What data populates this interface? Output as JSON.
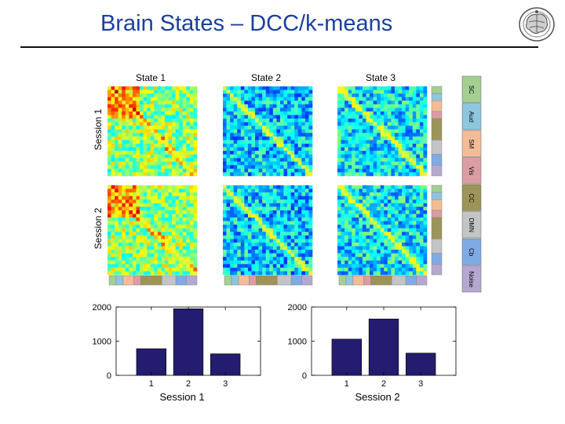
{
  "slide": {
    "title": "Brain States – DCC/k-means",
    "title_color": "#1a3f9e"
  },
  "logo": {
    "icon": "brain-globe-seal-icon"
  },
  "matrices": {
    "state_titles": [
      "State 1",
      "State 2",
      "State 3"
    ],
    "session_labels": [
      "Session 1",
      "Session 2"
    ],
    "size": 25,
    "colormap": "jet",
    "diagonal_color": "#f6f22a",
    "network_legend": [
      {
        "label": "SC",
        "color": "#a3cf93"
      },
      {
        "label": "Aud",
        "color": "#8ec6e0"
      },
      {
        "label": "SM",
        "color": "#f4bc96"
      },
      {
        "label": "Vis",
        "color": "#db9da2"
      },
      {
        "label": "CC",
        "color": "#9c9458"
      },
      {
        "label": "DMN",
        "color": "#c2c4c6"
      },
      {
        "label": "Cb",
        "color": "#7fabe5"
      },
      {
        "label": "Noise",
        "color": "#b4a8d0"
      }
    ]
  },
  "chart_data": [
    {
      "type": "bar",
      "title": "",
      "xlabel": "Session 1",
      "ylabel": "",
      "categories": [
        "1",
        "2",
        "3"
      ],
      "values": [
        780,
        1950,
        630
      ],
      "ylim": [
        0,
        2000
      ],
      "yticks": [
        0,
        1000,
        2000
      ],
      "bar_color": "#241c6e"
    },
    {
      "type": "bar",
      "title": "",
      "xlabel": "Session 2",
      "ylabel": "",
      "categories": [
        "1",
        "2",
        "3"
      ],
      "values": [
        1060,
        1650,
        650
      ],
      "ylim": [
        0,
        2000
      ],
      "yticks": [
        0,
        1000,
        2000
      ],
      "bar_color": "#241c6e"
    }
  ]
}
